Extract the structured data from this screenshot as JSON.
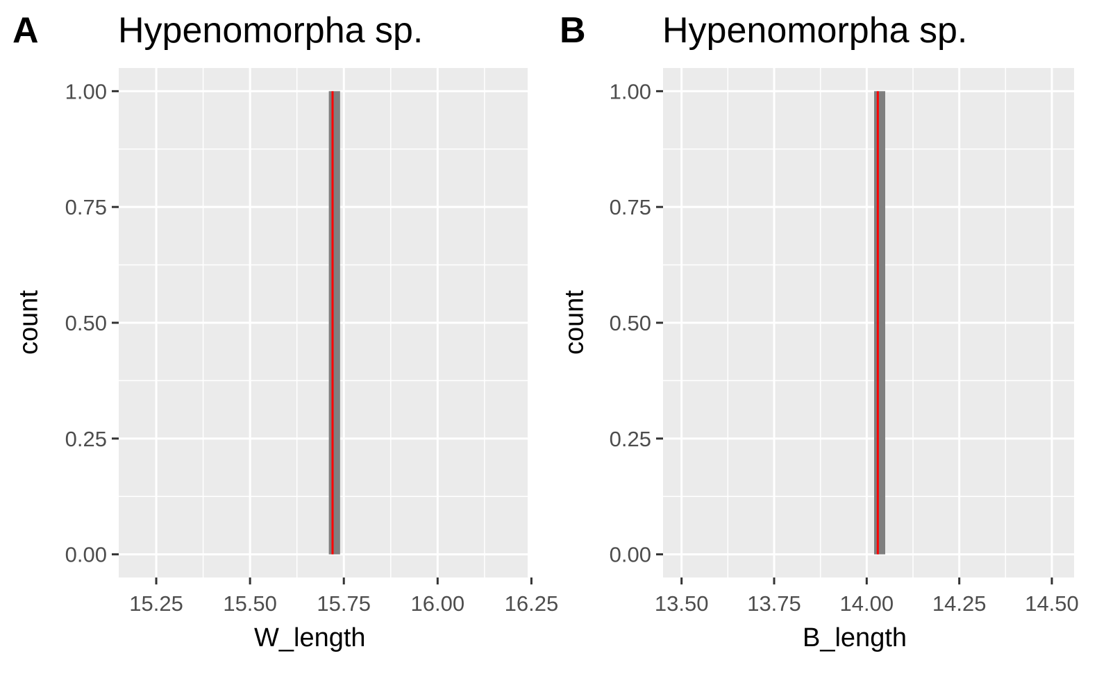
{
  "chart_data": [
    {
      "type": "bar",
      "panel_label": "A",
      "title": "Hypenomorpha sp.",
      "xlabel": "W_length",
      "ylabel": "count",
      "xlim": [
        15.15,
        16.24
      ],
      "ylim": [
        -0.05,
        1.05
      ],
      "x_ticks": [
        15.25,
        15.5,
        15.75,
        16.0,
        16.25
      ],
      "x_tick_labels": [
        "15.25",
        "15.50",
        "15.75",
        "16.00",
        "16.25"
      ],
      "y_ticks": [
        0,
        0.25,
        0.5,
        0.75,
        1.0
      ],
      "y_tick_labels": [
        "0.00",
        "0.25",
        "0.50",
        "0.75",
        "1.00"
      ],
      "bars": [
        {
          "xmin": 15.71,
          "xmax": 15.74,
          "count": 1
        }
      ],
      "mean_line": 15.72,
      "bar_color": "#7f7f7f",
      "line_color": "#ff0000",
      "panel_background": "#ebebeb",
      "grid": true
    },
    {
      "type": "bar",
      "panel_label": "B",
      "title": "Hypenomorpha sp.",
      "xlabel": "B_length",
      "ylabel": "count",
      "xlim": [
        13.45,
        14.56
      ],
      "ylim": [
        -0.05,
        1.05
      ],
      "x_ticks": [
        13.5,
        13.75,
        14.0,
        14.25,
        14.5
      ],
      "x_tick_labels": [
        "13.50",
        "13.75",
        "14.00",
        "14.25",
        "14.50"
      ],
      "y_ticks": [
        0,
        0.25,
        0.5,
        0.75,
        1.0
      ],
      "y_tick_labels": [
        "0.00",
        "0.25",
        "0.50",
        "0.75",
        "1.00"
      ],
      "bars": [
        {
          "xmin": 14.02,
          "xmax": 14.05,
          "count": 1
        }
      ],
      "mean_line": 14.03,
      "bar_color": "#7f7f7f",
      "line_color": "#ff0000",
      "panel_background": "#ebebeb",
      "grid": true
    }
  ]
}
